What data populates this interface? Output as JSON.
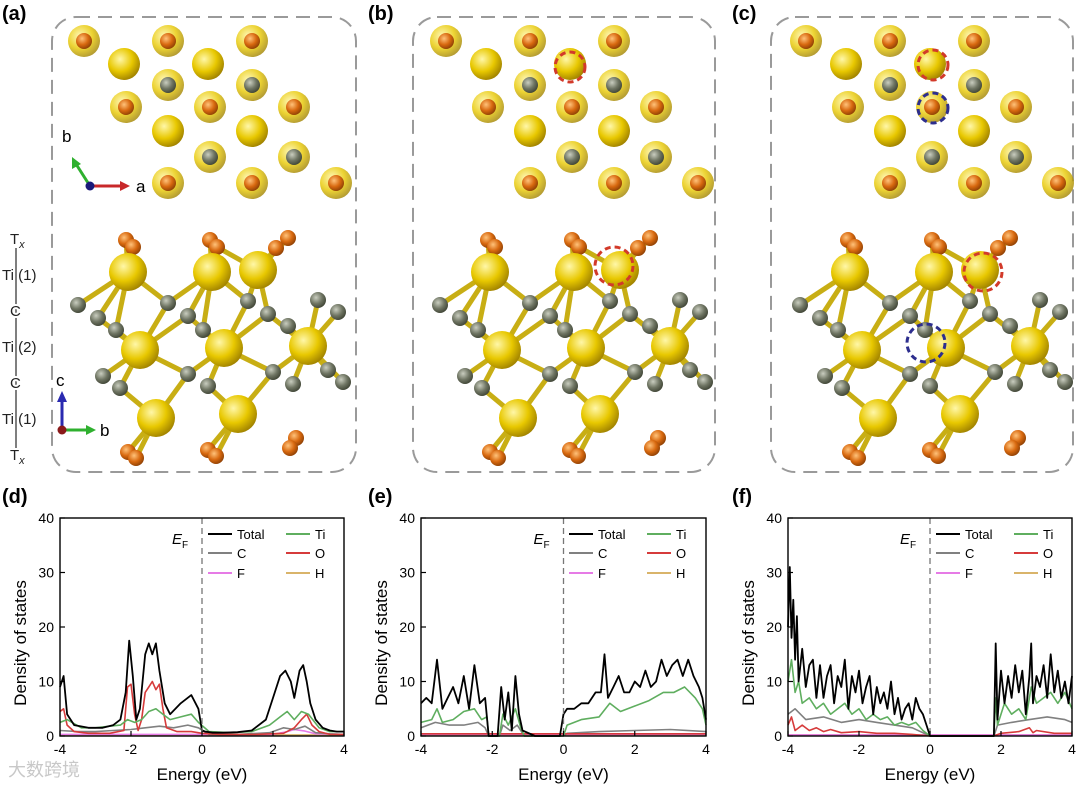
{
  "figure": {
    "panel_labels": [
      "(a)",
      "(b)",
      "(c)",
      "(d)",
      "(e)",
      "(f)"
    ],
    "layer_stack": [
      "T",
      "Ti (1)",
      "C",
      "Ti (2)",
      "C",
      "Ti (1)",
      "T"
    ],
    "layer_stack_subscript": "x",
    "axis_labels_top": {
      "b": "b",
      "a": "a"
    },
    "axis_labels_side": {
      "c": "c",
      "b": "b"
    },
    "colors": {
      "ti": "#e6c400",
      "carbon": "#6e7463",
      "oxygen": "#d8690f",
      "marker_red": "#d23a2a",
      "marker_blue": "#2d2e8e",
      "frame": "#9a9a9a"
    },
    "watermark": "大数跨境"
  },
  "chart_data": [
    {
      "type": "line",
      "panel": "(d)",
      "xlabel": "Energy (eV)",
      "ylabel": "Density of states",
      "xlim": [
        -4,
        4
      ],
      "ylim": [
        0,
        40
      ],
      "xticks": [
        -4,
        -2,
        0,
        2,
        4
      ],
      "yticks": [
        0,
        10,
        20,
        30,
        40
      ],
      "fermi_label": "E",
      "fermi_sub": "F",
      "fermi_x": 0,
      "legend": [
        "Total",
        "Ti",
        "C",
        "O",
        "F",
        "H"
      ],
      "series": [
        {
          "name": "Total",
          "color": "#000000",
          "x": [
            -4.0,
            -3.9,
            -3.8,
            -3.6,
            -3.2,
            -2.8,
            -2.5,
            -2.3,
            -2.15,
            -2.05,
            -1.95,
            -1.85,
            -1.75,
            -1.6,
            -1.5,
            -1.4,
            -1.3,
            -1.2,
            -1.05,
            -0.9,
            -0.6,
            -0.3,
            -0.1,
            0.0,
            0.1,
            0.3,
            0.6,
            1.0,
            1.4,
            1.8,
            2.0,
            2.2,
            2.35,
            2.5,
            2.6,
            2.75,
            2.85,
            2.95,
            3.05,
            3.2,
            3.4,
            3.6,
            3.8,
            4.0
          ],
          "y": [
            9,
            11,
            4,
            2,
            1.5,
            1.5,
            2,
            3,
            8,
            17.5,
            11,
            3,
            5,
            15,
            17,
            15,
            17,
            12,
            6,
            4,
            6,
            7.5,
            5,
            1,
            0.8,
            0.6,
            0.6,
            0.7,
            1,
            3,
            7,
            11,
            12,
            10,
            7,
            12,
            13,
            10,
            6,
            3,
            1.5,
            1,
            0.8,
            0.8
          ]
        },
        {
          "name": "Ti",
          "color": "#5fae5f",
          "x": [
            -4.0,
            -3.8,
            -3.4,
            -3.0,
            -2.6,
            -2.3,
            -2.1,
            -1.9,
            -1.7,
            -1.5,
            -1.3,
            -1.1,
            -0.9,
            -0.6,
            -0.3,
            -0.1,
            0.2,
            0.8,
            1.4,
            1.9,
            2.2,
            2.4,
            2.6,
            2.8,
            3.0,
            3.3,
            3.6,
            4.0
          ],
          "y": [
            2.5,
            3,
            1.5,
            1.5,
            1.8,
            2,
            3,
            2.5,
            3,
            4.5,
            5,
            4,
            3,
            3.5,
            4,
            2.5,
            0.8,
            0.6,
            0.8,
            2,
            3.5,
            4.5,
            3,
            4.5,
            4,
            1.5,
            0.8,
            0.8
          ]
        },
        {
          "name": "C",
          "color": "#808080",
          "x": [
            -4.0,
            -3.5,
            -3.0,
            -2.5,
            -2.0,
            -1.6,
            -1.2,
            -0.8,
            -0.4,
            -0.1,
            0.2,
            1.0,
            1.9,
            2.3,
            2.6,
            2.9,
            3.2,
            3.6,
            4.0
          ],
          "y": [
            1,
            0.8,
            0.8,
            1,
            1.2,
            1.5,
            1.8,
            1.5,
            2,
            1.5,
            0.3,
            0.3,
            0.6,
            1.5,
            1.2,
            1.8,
            0.6,
            0.4,
            0.3
          ]
        },
        {
          "name": "O",
          "color": "#d63b3b",
          "x": [
            -4.0,
            -3.9,
            -3.8,
            -3.6,
            -3.2,
            -2.6,
            -2.2,
            -2.1,
            -2.0,
            -1.9,
            -1.8,
            -1.7,
            -1.6,
            -1.5,
            -1.4,
            -1.3,
            -1.2,
            -1.1,
            -1.0,
            -0.7,
            -0.3,
            0.0,
            0.5,
            1.5,
            2.3,
            2.6,
            2.8,
            2.95,
            3.1,
            3.3,
            3.6,
            4.0
          ],
          "y": [
            4.5,
            5,
            2,
            0.8,
            0.5,
            0.5,
            1,
            9,
            9.5,
            4,
            1,
            3,
            8,
            9,
            10,
            8.5,
            9.5,
            5,
            1.5,
            0.8,
            0.8,
            0.5,
            0.3,
            0.3,
            0.5,
            1.5,
            3,
            4,
            2,
            0.8,
            0.3,
            0.3
          ]
        },
        {
          "name": "F",
          "color": "#e67be6",
          "x": [
            -4.0,
            -2.0,
            0.0,
            2.0,
            2.4,
            2.6,
            2.9,
            3.2,
            4.0
          ],
          "y": [
            0.3,
            0.3,
            0.3,
            0.3,
            0.8,
            1.2,
            0.9,
            0.4,
            0.3
          ]
        },
        {
          "name": "H",
          "color": "#d9b46a",
          "x": [
            -4.0,
            4.0
          ],
          "y": [
            0.2,
            0.2
          ]
        }
      ]
    },
    {
      "type": "line",
      "panel": "(e)",
      "xlabel": "Energy (eV)",
      "ylabel": "Density of states",
      "xlim": [
        -4,
        4
      ],
      "ylim": [
        0,
        40
      ],
      "xticks": [
        -4,
        -2,
        0,
        2,
        4
      ],
      "yticks": [
        0,
        10,
        20,
        30,
        40
      ],
      "fermi_label": "E",
      "fermi_sub": "F",
      "fermi_x": 0,
      "legend": [
        "Total",
        "Ti",
        "C",
        "O",
        "F",
        "H"
      ],
      "series": [
        {
          "name": "Total",
          "color": "#000000",
          "x": [
            -4.0,
            -3.85,
            -3.7,
            -3.55,
            -3.4,
            -3.25,
            -3.1,
            -2.95,
            -2.8,
            -2.65,
            -2.5,
            -2.35,
            -2.2,
            -2.1,
            -1.85,
            -1.75,
            -1.65,
            -1.55,
            -1.45,
            -1.35,
            -1.25,
            -1.15,
            -0.8,
            -0.4,
            -0.1,
            0.0,
            0.1,
            0.3,
            0.5,
            0.7,
            0.9,
            1.05,
            1.15,
            1.25,
            1.4,
            1.55,
            1.7,
            1.85,
            2.0,
            2.15,
            2.3,
            2.45,
            2.6,
            2.75,
            2.9,
            3.05,
            3.2,
            3.35,
            3.5,
            3.65,
            3.8,
            3.9,
            4.0
          ],
          "y": [
            6,
            7,
            6,
            14,
            5,
            7,
            9,
            6,
            11,
            5,
            13,
            6,
            7,
            0,
            0,
            9,
            3,
            8,
            1,
            11,
            4,
            1,
            0,
            0,
            0,
            4,
            5,
            5,
            6,
            6,
            8,
            8,
            15,
            7,
            9,
            11,
            8,
            8,
            10,
            9,
            12,
            9,
            10,
            14,
            11,
            13,
            14,
            11,
            14,
            11,
            9,
            7,
            3
          ]
        },
        {
          "name": "Ti",
          "color": "#5fae5f",
          "x": [
            -4.0,
            -3.7,
            -3.55,
            -3.4,
            -3.1,
            -2.8,
            -2.5,
            -2.3,
            -2.15,
            -2.1,
            -1.8,
            -1.7,
            -1.55,
            -1.35,
            -1.2,
            -1.1,
            0.0,
            0.1,
            0.5,
            1.0,
            1.3,
            1.6,
            2.0,
            2.4,
            2.8,
            3.1,
            3.4,
            3.7,
            3.9,
            4.0
          ],
          "y": [
            2.5,
            3,
            5,
            2.5,
            3,
            4.5,
            5,
            3,
            3.5,
            0,
            0,
            4,
            2,
            5,
            1.5,
            0,
            0,
            2,
            3,
            3.5,
            6,
            4.5,
            5.5,
            6.5,
            8,
            8,
            9,
            7,
            5,
            2
          ]
        },
        {
          "name": "C",
          "color": "#808080",
          "x": [
            -4.0,
            -3.6,
            -3.2,
            -2.8,
            -2.4,
            -2.2,
            -2.1,
            -1.8,
            -1.7,
            -1.5,
            -1.3,
            -1.1,
            0.0,
            0.1,
            1.0,
            2.0,
            3.0,
            4.0
          ],
          "y": [
            1.5,
            2.5,
            2,
            2,
            2.5,
            1.5,
            0,
            0,
            2,
            1,
            2,
            0,
            0,
            0.5,
            0.8,
            1,
            1.2,
            0.8
          ]
        },
        {
          "name": "O",
          "color": "#d63b3b",
          "x": [
            -4.0,
            4.0
          ],
          "y": [
            0.4,
            0.4
          ]
        },
        {
          "name": "F",
          "color": "#e67be6",
          "x": [
            -4.0,
            4.0
          ],
          "y": [
            0.3,
            0.3
          ]
        },
        {
          "name": "H",
          "color": "#d9b46a",
          "x": [
            -4.0,
            4.0
          ],
          "y": [
            0.2,
            0.2
          ]
        }
      ]
    },
    {
      "type": "line",
      "panel": "(f)",
      "xlabel": "Energy (eV)",
      "ylabel": "Density of states",
      "xlim": [
        -4,
        4
      ],
      "ylim": [
        0,
        40
      ],
      "xticks": [
        -4,
        -2,
        0,
        2,
        4
      ],
      "yticks": [
        0,
        10,
        20,
        30,
        40
      ],
      "fermi_label": "E",
      "fermi_sub": "F",
      "fermi_x": 0,
      "legend": [
        "Total",
        "Ti",
        "C",
        "O",
        "F",
        "H"
      ],
      "series": [
        {
          "name": "Total",
          "color": "#000000",
          "x": [
            -4.0,
            -3.95,
            -3.9,
            -3.85,
            -3.8,
            -3.75,
            -3.7,
            -3.6,
            -3.5,
            -3.4,
            -3.3,
            -3.2,
            -3.1,
            -3.0,
            -2.9,
            -2.8,
            -2.7,
            -2.6,
            -2.5,
            -2.4,
            -2.3,
            -2.2,
            -2.1,
            -2.0,
            -1.9,
            -1.8,
            -1.7,
            -1.6,
            -1.5,
            -1.4,
            -1.3,
            -1.2,
            -1.1,
            -1.0,
            -0.9,
            -0.8,
            -0.7,
            -0.6,
            -0.5,
            -0.4,
            -0.3,
            -0.2,
            -0.1,
            0.0,
            1.7,
            1.8,
            1.85,
            1.9,
            2.0,
            2.1,
            2.2,
            2.3,
            2.4,
            2.5,
            2.6,
            2.7,
            2.8,
            2.85,
            2.9,
            3.0,
            3.1,
            3.2,
            3.3,
            3.4,
            3.5,
            3.6,
            3.7,
            3.8,
            3.9,
            4.0
          ],
          "y": [
            20,
            31,
            18,
            25,
            14,
            22,
            10,
            16,
            9,
            13,
            14,
            7,
            13,
            7,
            11,
            13,
            6,
            11,
            9,
            14,
            5,
            11,
            8,
            12,
            6,
            9,
            11,
            4,
            9,
            6,
            8,
            5,
            10,
            4,
            7,
            3,
            5,
            6,
            3,
            7,
            5,
            4,
            2,
            0,
            0,
            0,
            17,
            3,
            12,
            6,
            11,
            7,
            13,
            8,
            12,
            4,
            11,
            17,
            6,
            11,
            9,
            13,
            7,
            15,
            8,
            12,
            7,
            10,
            6,
            11
          ]
        },
        {
          "name": "Ti",
          "color": "#5fae5f",
          "x": [
            -4.0,
            -3.9,
            -3.8,
            -3.7,
            -3.6,
            -3.4,
            -3.2,
            -3.0,
            -2.8,
            -2.6,
            -2.4,
            -2.2,
            -2.0,
            -1.8,
            -1.6,
            -1.4,
            -1.2,
            -1.0,
            -0.8,
            -0.6,
            -0.4,
            -0.2,
            0.0,
            1.8,
            1.85,
            1.9,
            2.1,
            2.3,
            2.5,
            2.7,
            2.85,
            3.0,
            3.2,
            3.4,
            3.6,
            3.8,
            4.0
          ],
          "y": [
            10,
            14,
            8,
            10,
            6,
            7,
            5,
            6,
            4,
            5,
            6,
            4,
            5,
            3,
            4,
            3,
            3.5,
            2,
            2.5,
            2,
            2.5,
            1,
            0,
            0,
            7,
            2,
            6,
            4,
            5,
            3,
            9,
            6,
            7,
            8,
            6,
            8,
            5
          ]
        },
        {
          "name": "C",
          "color": "#808080",
          "x": [
            -4.0,
            -3.8,
            -3.5,
            -3.0,
            -2.5,
            -2.0,
            -1.5,
            -1.0,
            -0.5,
            0.0,
            1.8,
            1.9,
            2.3,
            2.8,
            3.3,
            3.8,
            4.0
          ],
          "y": [
            4,
            5,
            3,
            3.5,
            2.5,
            3,
            2.5,
            2,
            1.5,
            0,
            0,
            2,
            2.5,
            3,
            3.5,
            3,
            2.5
          ]
        },
        {
          "name": "O",
          "color": "#d63b3b",
          "x": [
            -4.0,
            -3.9,
            -3.8,
            -3.6,
            -3.4,
            -3.2,
            -3.0,
            -2.8,
            -2.5,
            -2.0,
            -1.5,
            -1.0,
            -0.5,
            0.0,
            1.8,
            2.0,
            2.5,
            2.8,
            2.9,
            3.0,
            3.5,
            4.0
          ],
          "y": [
            2,
            3.5,
            1,
            2,
            1,
            1.5,
            0.8,
            1.2,
            0.6,
            0.8,
            0.5,
            0.5,
            0.3,
            0,
            0,
            0.5,
            0.8,
            1.5,
            0.6,
            1,
            0.5,
            0.5
          ]
        },
        {
          "name": "F",
          "color": "#e67be6",
          "x": [
            -4.0,
            4.0
          ],
          "y": [
            0.2,
            0.2
          ]
        },
        {
          "name": "H",
          "color": "#d9b46a",
          "x": [
            -4.0,
            4.0
          ],
          "y": [
            0.2,
            0.2
          ]
        }
      ]
    }
  ]
}
